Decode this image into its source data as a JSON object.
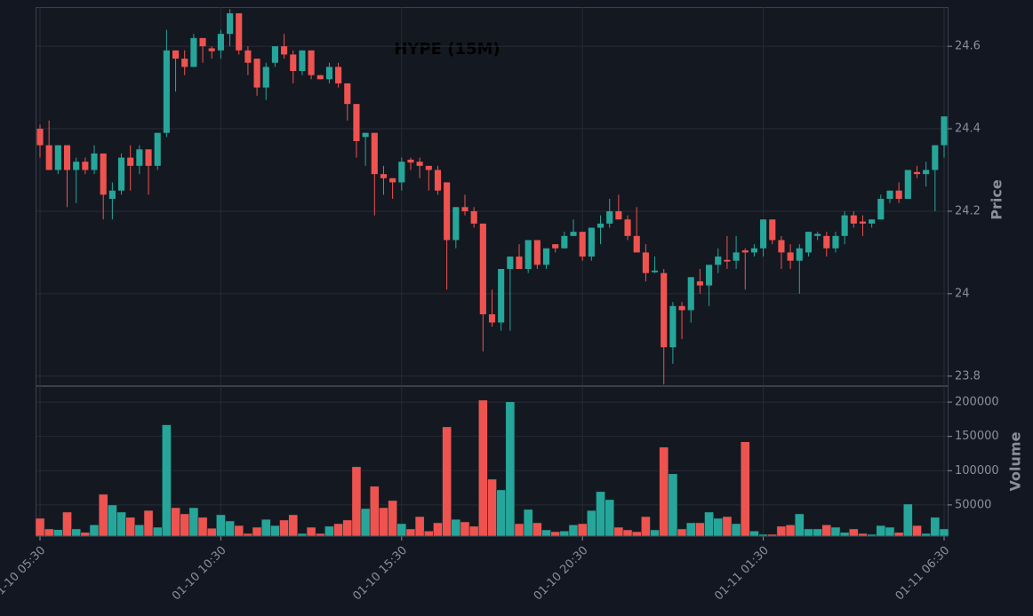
{
  "chart_data": {
    "type": "candlestick",
    "title": "HYPE (15M)",
    "ylabel": "Price",
    "categories": [
      "01-10 05:30",
      null,
      null,
      null,
      null,
      null,
      null,
      null,
      null,
      null,
      null,
      null,
      null,
      null,
      null,
      null,
      null,
      null,
      null,
      null,
      "01-10 10:30",
      null,
      null,
      null,
      null,
      null,
      null,
      null,
      null,
      null,
      null,
      null,
      null,
      null,
      null,
      null,
      null,
      null,
      null,
      null,
      "01-10 15:30",
      null,
      null,
      null,
      null,
      null,
      null,
      null,
      null,
      null,
      null,
      null,
      null,
      null,
      null,
      null,
      null,
      null,
      null,
      null,
      "01-10 20:30",
      null,
      null,
      null,
      null,
      null,
      null,
      null,
      null,
      null,
      null,
      null,
      null,
      null,
      null,
      null,
      null,
      null,
      null,
      null,
      "01-11 01:30",
      null,
      null,
      null,
      null,
      null,
      null,
      null,
      null,
      null,
      null,
      null,
      null,
      null,
      null,
      null,
      null,
      null,
      null,
      null,
      "01-11 06:30"
    ],
    "open": [
      24.4,
      24.36,
      24.3,
      24.36,
      24.3,
      24.32,
      24.3,
      24.34,
      24.23,
      24.25,
      24.33,
      24.31,
      24.35,
      24.31,
      24.39,
      24.59,
      24.57,
      24.55,
      24.62,
      24.595,
      24.59,
      24.63,
      24.68,
      24.59,
      24.57,
      24.5,
      24.56,
      24.6,
      24.58,
      24.54,
      24.59,
      24.53,
      24.52,
      24.55,
      24.51,
      24.46,
      24.38,
      24.39,
      24.29,
      24.28,
      24.27,
      24.325,
      24.32,
      24.31,
      24.3,
      24.27,
      24.13,
      24.21,
      24.2,
      24.17,
      23.95,
      23.93,
      24.06,
      24.09,
      24.06,
      24.13,
      24.07,
      24.12,
      24.11,
      24.14,
      24.15,
      24.09,
      24.16,
      24.17,
      24.2,
      24.18,
      24.14,
      24.1,
      24.052,
      24.05,
      23.87,
      23.97,
      23.96,
      24.03,
      24.02,
      24.07,
      24.082,
      24.08,
      24.105,
      24.1,
      24.11,
      24.18,
      24.13,
      24.1,
      24.08,
      24.1,
      24.14,
      24.14,
      24.11,
      24.14,
      24.19,
      24.175,
      24.17,
      24.18,
      24.23,
      24.25,
      24.23,
      24.295,
      24.29,
      24.3,
      24.36
    ],
    "high": [
      24.41,
      24.42,
      24.36,
      24.36,
      24.33,
      24.33,
      24.36,
      24.34,
      24.27,
      24.34,
      24.36,
      24.36,
      24.35,
      24.39,
      24.64,
      24.59,
      24.59,
      24.63,
      24.62,
      24.6,
      24.64,
      24.69,
      24.68,
      24.6,
      24.57,
      24.56,
      24.6,
      24.63,
      24.59,
      24.59,
      24.59,
      24.53,
      24.56,
      24.56,
      24.51,
      24.46,
      24.39,
      24.39,
      24.31,
      24.28,
      24.33,
      24.33,
      24.33,
      24.31,
      24.31,
      24.27,
      24.21,
      24.24,
      24.21,
      24.17,
      24.01,
      24.06,
      24.09,
      24.12,
      24.13,
      24.13,
      24.11,
      24.12,
      24.15,
      24.18,
      24.15,
      24.16,
      24.19,
      24.23,
      24.24,
      24.19,
      24.21,
      24.12,
      24.09,
      24.06,
      23.98,
      23.98,
      24.04,
      24.06,
      24.07,
      24.11,
      24.14,
      24.14,
      24.11,
      24.12,
      24.18,
      24.18,
      24.14,
      24.12,
      24.12,
      24.15,
      24.15,
      24.15,
      24.15,
      24.2,
      24.2,
      24.19,
      24.18,
      24.24,
      24.25,
      24.27,
      24.3,
      24.31,
      24.32,
      24.36,
      24.43
    ],
    "low": [
      24.33,
      24.3,
      24.29,
      24.21,
      24.22,
      24.29,
      24.29,
      24.18,
      24.18,
      24.24,
      24.25,
      24.29,
      24.24,
      24.3,
      24.38,
      24.49,
      24.53,
      24.55,
      24.56,
      24.57,
      24.57,
      24.6,
      24.58,
      24.53,
      24.48,
      24.47,
      24.55,
      24.57,
      24.51,
      24.53,
      24.52,
      24.52,
      24.51,
      24.5,
      24.42,
      24.33,
      24.31,
      24.19,
      24.24,
      24.23,
      24.25,
      24.3,
      24.28,
      24.25,
      24.24,
      24.01,
      24.11,
      24.19,
      24.16,
      23.86,
      23.92,
      23.91,
      23.91,
      24.06,
      24.05,
      24.06,
      24.06,
      24.1,
      24.11,
      24.14,
      24.08,
      24.08,
      24.12,
      24.16,
      24.18,
      24.13,
      24.1,
      24.03,
      24.05,
      23.78,
      23.83,
      23.89,
      23.93,
      24.0,
      23.97,
      24.05,
      24.06,
      24.06,
      24.01,
      24.09,
      24.09,
      24.12,
      24.06,
      24.06,
      24.0,
      24.09,
      24.13,
      24.09,
      24.1,
      24.12,
      24.16,
      24.14,
      24.16,
      24.18,
      24.22,
      24.22,
      24.23,
      24.28,
      24.26,
      24.2,
      24.33
    ],
    "close": [
      24.36,
      24.3,
      24.36,
      24.3,
      24.32,
      24.3,
      24.34,
      24.24,
      24.25,
      24.33,
      24.31,
      24.35,
      24.31,
      24.39,
      24.59,
      24.57,
      24.55,
      24.62,
      24.6,
      24.588,
      24.63,
      24.68,
      24.59,
      24.56,
      24.5,
      24.55,
      24.6,
      24.58,
      24.54,
      24.59,
      24.53,
      24.52,
      24.55,
      24.51,
      24.46,
      24.37,
      24.39,
      24.29,
      24.28,
      24.27,
      24.32,
      24.318,
      24.31,
      24.3,
      24.25,
      24.13,
      24.21,
      24.2,
      24.17,
      23.95,
      23.93,
      24.06,
      24.09,
      24.06,
      24.13,
      24.07,
      24.11,
      24.11,
      24.14,
      24.15,
      24.09,
      24.16,
      24.17,
      24.2,
      24.18,
      24.14,
      24.1,
      24.05,
      24.056,
      23.87,
      23.97,
      23.96,
      24.04,
      24.02,
      24.07,
      24.09,
      24.078,
      24.1,
      24.1,
      24.11,
      24.18,
      24.13,
      24.1,
      24.08,
      24.11,
      24.15,
      24.145,
      24.11,
      24.14,
      24.19,
      24.17,
      24.17,
      24.18,
      24.23,
      24.25,
      24.23,
      24.3,
      24.29,
      24.3,
      24.36,
      24.43
    ],
    "up_color": "#26a69a",
    "down_color": "#ef5350",
    "ylim": [
      23.778,
      24.695
    ],
    "yticks": [
      23.8,
      24.0,
      24.2,
      24.4,
      24.6
    ],
    "grid": true,
    "volume": {
      "label": "Volume",
      "ylim": [
        4500,
        223400
      ],
      "yticks": [
        50000,
        100000,
        150000,
        200000
      ],
      "values": [
        30500,
        15000,
        14000,
        39600,
        15000,
        10000,
        21000,
        65600,
        50000,
        39600,
        32000,
        21000,
        42000,
        17500,
        167000,
        46000,
        37000,
        46000,
        32000,
        16000,
        35700,
        26600,
        20000,
        8400,
        17500,
        29000,
        20000,
        28000,
        35700,
        8400,
        17500,
        8400,
        19000,
        22700,
        28000,
        105800,
        44800,
        77300,
        46000,
        56500,
        22700,
        15000,
        33000,
        12000,
        24000,
        164000,
        29000,
        25300,
        19000,
        203000,
        87700,
        72000,
        200600,
        22700,
        43500,
        24000,
        13600,
        11000,
        12000,
        21000,
        22700,
        42000,
        69500,
        57800,
        17500,
        13600,
        11000,
        33000,
        13600,
        134400,
        95500,
        15000,
        24000,
        24000,
        39600,
        30500,
        33000,
        22700,
        142200,
        12000,
        7100,
        7100,
        19000,
        21000,
        37000,
        15000,
        15000,
        21000,
        17500,
        10000,
        15000,
        8400,
        7100,
        20000,
        17500,
        10000,
        51300,
        20000,
        8400,
        32000,
        15000
      ]
    }
  }
}
